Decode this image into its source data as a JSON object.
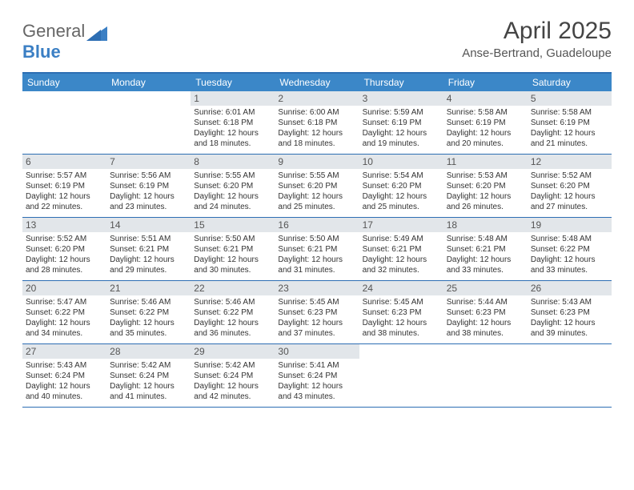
{
  "logo": {
    "text1": "General",
    "text2": "Blue"
  },
  "title": "April 2025",
  "location": "Anse-Bertrand, Guadeloupe",
  "colors": {
    "header_bar": "#3b87c8",
    "border": "#2d6eb3",
    "daynum_bg": "#e2e6ea",
    "text": "#333333"
  },
  "dow": [
    "Sunday",
    "Monday",
    "Tuesday",
    "Wednesday",
    "Thursday",
    "Friday",
    "Saturday"
  ],
  "weeks": [
    [
      {
        "n": "",
        "sr": "",
        "ss": "",
        "dl": ""
      },
      {
        "n": "",
        "sr": "",
        "ss": "",
        "dl": ""
      },
      {
        "n": "1",
        "sr": "Sunrise: 6:01 AM",
        "ss": "Sunset: 6:18 PM",
        "dl": "Daylight: 12 hours and 18 minutes."
      },
      {
        "n": "2",
        "sr": "Sunrise: 6:00 AM",
        "ss": "Sunset: 6:18 PM",
        "dl": "Daylight: 12 hours and 18 minutes."
      },
      {
        "n": "3",
        "sr": "Sunrise: 5:59 AM",
        "ss": "Sunset: 6:19 PM",
        "dl": "Daylight: 12 hours and 19 minutes."
      },
      {
        "n": "4",
        "sr": "Sunrise: 5:58 AM",
        "ss": "Sunset: 6:19 PM",
        "dl": "Daylight: 12 hours and 20 minutes."
      },
      {
        "n": "5",
        "sr": "Sunrise: 5:58 AM",
        "ss": "Sunset: 6:19 PM",
        "dl": "Daylight: 12 hours and 21 minutes."
      }
    ],
    [
      {
        "n": "6",
        "sr": "Sunrise: 5:57 AM",
        "ss": "Sunset: 6:19 PM",
        "dl": "Daylight: 12 hours and 22 minutes."
      },
      {
        "n": "7",
        "sr": "Sunrise: 5:56 AM",
        "ss": "Sunset: 6:19 PM",
        "dl": "Daylight: 12 hours and 23 minutes."
      },
      {
        "n": "8",
        "sr": "Sunrise: 5:55 AM",
        "ss": "Sunset: 6:20 PM",
        "dl": "Daylight: 12 hours and 24 minutes."
      },
      {
        "n": "9",
        "sr": "Sunrise: 5:55 AM",
        "ss": "Sunset: 6:20 PM",
        "dl": "Daylight: 12 hours and 25 minutes."
      },
      {
        "n": "10",
        "sr": "Sunrise: 5:54 AM",
        "ss": "Sunset: 6:20 PM",
        "dl": "Daylight: 12 hours and 25 minutes."
      },
      {
        "n": "11",
        "sr": "Sunrise: 5:53 AM",
        "ss": "Sunset: 6:20 PM",
        "dl": "Daylight: 12 hours and 26 minutes."
      },
      {
        "n": "12",
        "sr": "Sunrise: 5:52 AM",
        "ss": "Sunset: 6:20 PM",
        "dl": "Daylight: 12 hours and 27 minutes."
      }
    ],
    [
      {
        "n": "13",
        "sr": "Sunrise: 5:52 AM",
        "ss": "Sunset: 6:20 PM",
        "dl": "Daylight: 12 hours and 28 minutes."
      },
      {
        "n": "14",
        "sr": "Sunrise: 5:51 AM",
        "ss": "Sunset: 6:21 PM",
        "dl": "Daylight: 12 hours and 29 minutes."
      },
      {
        "n": "15",
        "sr": "Sunrise: 5:50 AM",
        "ss": "Sunset: 6:21 PM",
        "dl": "Daylight: 12 hours and 30 minutes."
      },
      {
        "n": "16",
        "sr": "Sunrise: 5:50 AM",
        "ss": "Sunset: 6:21 PM",
        "dl": "Daylight: 12 hours and 31 minutes."
      },
      {
        "n": "17",
        "sr": "Sunrise: 5:49 AM",
        "ss": "Sunset: 6:21 PM",
        "dl": "Daylight: 12 hours and 32 minutes."
      },
      {
        "n": "18",
        "sr": "Sunrise: 5:48 AM",
        "ss": "Sunset: 6:21 PM",
        "dl": "Daylight: 12 hours and 33 minutes."
      },
      {
        "n": "19",
        "sr": "Sunrise: 5:48 AM",
        "ss": "Sunset: 6:22 PM",
        "dl": "Daylight: 12 hours and 33 minutes."
      }
    ],
    [
      {
        "n": "20",
        "sr": "Sunrise: 5:47 AM",
        "ss": "Sunset: 6:22 PM",
        "dl": "Daylight: 12 hours and 34 minutes."
      },
      {
        "n": "21",
        "sr": "Sunrise: 5:46 AM",
        "ss": "Sunset: 6:22 PM",
        "dl": "Daylight: 12 hours and 35 minutes."
      },
      {
        "n": "22",
        "sr": "Sunrise: 5:46 AM",
        "ss": "Sunset: 6:22 PM",
        "dl": "Daylight: 12 hours and 36 minutes."
      },
      {
        "n": "23",
        "sr": "Sunrise: 5:45 AM",
        "ss": "Sunset: 6:23 PM",
        "dl": "Daylight: 12 hours and 37 minutes."
      },
      {
        "n": "24",
        "sr": "Sunrise: 5:45 AM",
        "ss": "Sunset: 6:23 PM",
        "dl": "Daylight: 12 hours and 38 minutes."
      },
      {
        "n": "25",
        "sr": "Sunrise: 5:44 AM",
        "ss": "Sunset: 6:23 PM",
        "dl": "Daylight: 12 hours and 38 minutes."
      },
      {
        "n": "26",
        "sr": "Sunrise: 5:43 AM",
        "ss": "Sunset: 6:23 PM",
        "dl": "Daylight: 12 hours and 39 minutes."
      }
    ],
    [
      {
        "n": "27",
        "sr": "Sunrise: 5:43 AM",
        "ss": "Sunset: 6:24 PM",
        "dl": "Daylight: 12 hours and 40 minutes."
      },
      {
        "n": "28",
        "sr": "Sunrise: 5:42 AM",
        "ss": "Sunset: 6:24 PM",
        "dl": "Daylight: 12 hours and 41 minutes."
      },
      {
        "n": "29",
        "sr": "Sunrise: 5:42 AM",
        "ss": "Sunset: 6:24 PM",
        "dl": "Daylight: 12 hours and 42 minutes."
      },
      {
        "n": "30",
        "sr": "Sunrise: 5:41 AM",
        "ss": "Sunset: 6:24 PM",
        "dl": "Daylight: 12 hours and 43 minutes."
      },
      {
        "n": "",
        "sr": "",
        "ss": "",
        "dl": ""
      },
      {
        "n": "",
        "sr": "",
        "ss": "",
        "dl": ""
      },
      {
        "n": "",
        "sr": "",
        "ss": "",
        "dl": ""
      }
    ]
  ]
}
